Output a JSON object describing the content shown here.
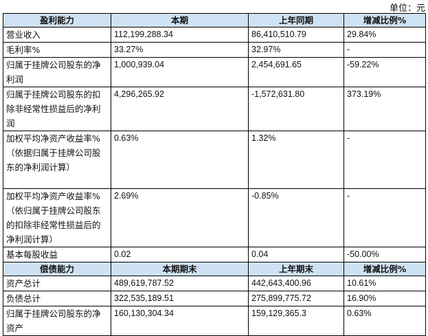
{
  "unit": "单位：元",
  "profitability": {
    "headers": [
      "盈利能力",
      "本期",
      "上年同期",
      "增减比例%"
    ],
    "rows": [
      {
        "label": "营业收入",
        "current": "112,199,288.34",
        "prior": "86,410,510.79",
        "change": "29.84%"
      },
      {
        "label": "毛利率%",
        "current": "33.27%",
        "prior": "32.97%",
        "change": "-"
      },
      {
        "label": "归属于挂牌公司股东的净利润",
        "current": "1,000,939.04",
        "prior": "2,454,691.65",
        "change": "-59.22%"
      },
      {
        "label": "归属于挂牌公司股东的扣除非经常性损益后的净利润",
        "current": "4,296,265.92",
        "prior": "-1,572,631.80",
        "change": "373.19%"
      },
      {
        "label": "加权平均净资产收益率%（依据归属于挂牌公司股东的净利润计算）",
        "current": "0.63%",
        "prior": "1.32%",
        "change": "-"
      },
      {
        "label": "加权平均净资产收益率%（依归属于挂牌公司股东的扣除非经常性损益后的净利润计算）",
        "current": "2.69%",
        "prior": "-0.85%",
        "change": "-"
      },
      {
        "label": "基本每股收益",
        "current": "0.02",
        "prior": "0.04",
        "change": "-50.00%"
      }
    ]
  },
  "solvency": {
    "headers": [
      "偿债能力",
      "本期期末",
      "上年期末",
      "增减比例%"
    ],
    "rows": [
      {
        "label": "资产总计",
        "current": "489,619,787.52",
        "prior": "442,643,400.96",
        "change": "10.61%"
      },
      {
        "label": "负债总计",
        "current": "322,535,189.51",
        "prior": "275,899,775.72",
        "change": "16.90%"
      },
      {
        "label": "归属于挂牌公司股东的净资产",
        "current": "160,130,304.34",
        "prior": "159,129,365.3",
        "change": "0.63%"
      }
    ]
  }
}
